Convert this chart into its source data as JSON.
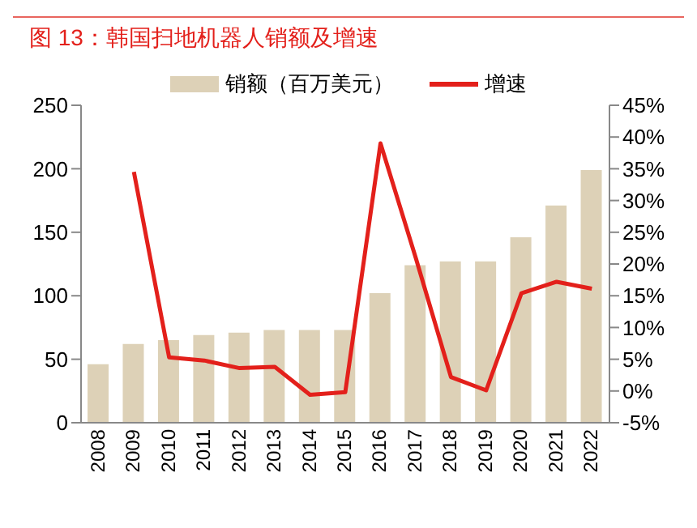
{
  "chart_data": {
    "type": "bar",
    "title": "图 13：韩国扫地机器人销额及增速",
    "categories": [
      "2008",
      "2009",
      "2010",
      "2011",
      "2012",
      "2013",
      "2014",
      "2015",
      "2016",
      "2017",
      "2018",
      "2019",
      "2020",
      "2021",
      "2022"
    ],
    "series": [
      {
        "name": "销额（百万美元）",
        "color": "#ddd1b7",
        "values": [
          46,
          62,
          65,
          69,
          71,
          73,
          73,
          73,
          102,
          124,
          127,
          127,
          146,
          171,
          199
        ]
      },
      {
        "name": "增速",
        "type": "line",
        "axis": "y2",
        "color": "#e3201b",
        "values": [
          null,
          34.5,
          5.3,
          4.8,
          3.6,
          3.8,
          -0.6,
          -0.2,
          39,
          21,
          2.2,
          0.1,
          15.4,
          17.2,
          16.1
        ]
      }
    ],
    "ylim": [
      0,
      250
    ],
    "yticks": [
      0,
      50,
      100,
      150,
      200,
      250
    ],
    "y2lim": [
      -5,
      45
    ],
    "y2ticks": [
      {
        "value": -5,
        "label": "-5%"
      },
      {
        "value": 0,
        "label": "0%"
      },
      {
        "value": 5,
        "label": "5%"
      },
      {
        "value": 10,
        "label": "10%"
      },
      {
        "value": 15,
        "label": "15%"
      },
      {
        "value": 20,
        "label": "20%"
      },
      {
        "value": 25,
        "label": "25%"
      },
      {
        "value": 30,
        "label": "30%"
      },
      {
        "value": 35,
        "label": "35%"
      },
      {
        "value": 40,
        "label": "40%"
      },
      {
        "value": 45,
        "label": "45%"
      }
    ],
    "grid": false,
    "legend": "top",
    "marker": "none",
    "line_style": "solid"
  }
}
